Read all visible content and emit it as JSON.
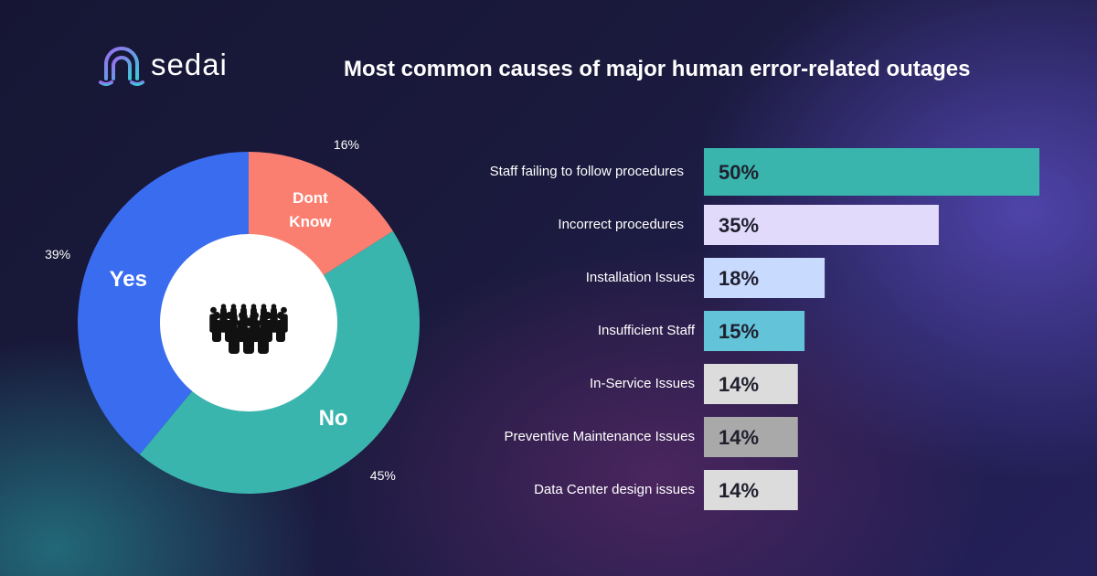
{
  "logo": "sedai",
  "title": "Most common causes of major human error-related outages",
  "chart_data": [
    {
      "type": "donut",
      "categories": [
        "Dont Know",
        "No",
        "Yes"
      ],
      "values": [
        16,
        45,
        39
      ],
      "value_labels": [
        "16%",
        "45%",
        "39%"
      ],
      "colors": [
        "#fa7f70",
        "#3ab5ae",
        "#3a6cf0"
      ]
    },
    {
      "type": "hbar",
      "categories": [
        "Staff failing to follow procedures",
        "Incorrect procedures",
        "Installation Issues",
        "Insufficient Staff",
        "In-Service Issues",
        "Preventive Maintenance Issues",
        "Data Center design issues"
      ],
      "values": [
        50,
        35,
        18,
        15,
        14,
        14,
        14
      ],
      "value_labels": [
        "50%",
        "35%",
        "18%",
        "15%",
        "14%",
        "14%",
        "14%"
      ],
      "colors": [
        "#39b5ae",
        "#e2dafb",
        "#c8dbff",
        "#62c3d9",
        "#dcdcdc",
        "#a9a9a9",
        "#dcdcdc"
      ]
    }
  ]
}
